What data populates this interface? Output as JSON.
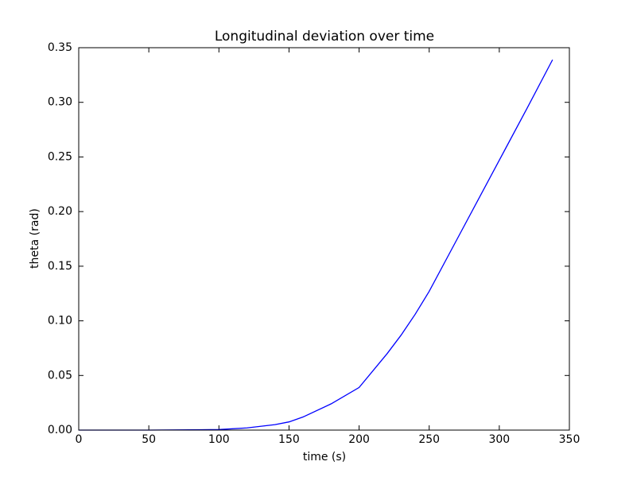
{
  "chart_data": {
    "type": "line",
    "title": "Longitudinal deviation over time",
    "x_label": "time (s)",
    "y_label": "theta (rad)",
    "x": [
      0,
      50,
      100,
      120,
      140,
      150,
      160,
      180,
      200,
      220,
      230,
      240,
      250,
      270,
      300,
      320,
      338
    ],
    "series": [
      {
        "color": "#0000ff",
        "values": [
          0,
          0,
          0.0005,
          0.002,
          0.005,
          0.0075,
          0.012,
          0.024,
          0.039,
          0.07,
          0.087,
          0.106,
          0.127,
          0.175,
          0.247,
          0.295,
          0.339
        ]
      }
    ],
    "xlim": [
      0,
      350
    ],
    "xticks": [
      0,
      50,
      100,
      150,
      200,
      250,
      300,
      350
    ],
    "ylim": [
      0,
      0.35
    ],
    "yticks": [
      {
        "value": 0,
        "label": "0.00"
      },
      {
        "value": 0.05,
        "label": "0.05"
      },
      {
        "value": 0.1,
        "label": "0.10"
      },
      {
        "value": 0.15,
        "label": "0.15"
      },
      {
        "value": 0.2,
        "label": "0.20"
      },
      {
        "value": 0.25,
        "label": "0.25"
      },
      {
        "value": 0.3,
        "label": "0.30"
      },
      {
        "value": 0.35,
        "label": "0.35"
      }
    ],
    "grid": false
  }
}
